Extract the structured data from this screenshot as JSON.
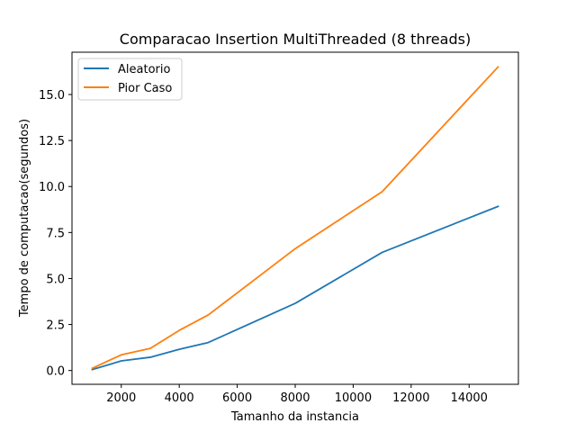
{
  "chart_data": {
    "type": "line",
    "title": "Comparacao Insertion MultiThreaded (8 threads)",
    "xlabel": "Tamanho da instancia",
    "ylabel": "Tempo de computacao(segundos)",
    "xlim": [
      300,
      15700
    ],
    "ylim": [
      -0.75,
      17.3
    ],
    "xticks": [
      2000,
      4000,
      6000,
      8000,
      10000,
      12000,
      14000
    ],
    "xtick_labels": [
      "2000",
      "4000",
      "6000",
      "8000",
      "10000",
      "12000",
      "14000"
    ],
    "yticks": [
      0.0,
      2.5,
      5.0,
      7.5,
      10.0,
      12.5,
      15.0
    ],
    "ytick_labels": [
      "0.0",
      "2.5",
      "5.0",
      "7.5",
      "10.0",
      "12.5",
      "15.0"
    ],
    "grid": false,
    "legend_position": "upper-left",
    "x": [
      1000,
      2000,
      3000,
      4000,
      5000,
      8000,
      11000,
      15000
    ],
    "series": [
      {
        "name": "Aleatorio",
        "color": "#1f77b4",
        "values": [
          0.05,
          0.52,
          0.72,
          1.15,
          1.52,
          3.65,
          6.42,
          8.92
        ]
      },
      {
        "name": "Pior Caso",
        "color": "#ff7f0e",
        "values": [
          0.12,
          0.85,
          1.2,
          2.18,
          3.02,
          6.62,
          9.72,
          16.5
        ]
      }
    ]
  }
}
